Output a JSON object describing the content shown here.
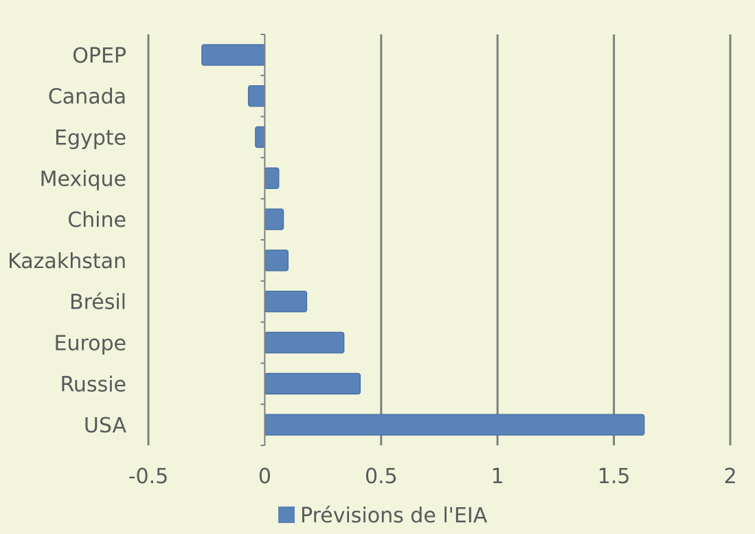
{
  "chart_data": {
    "type": "bar",
    "orientation": "horizontal",
    "categories": [
      "OPEP",
      "Canada",
      "Egypte",
      "Mexique",
      "Chine",
      "Kazakhstan",
      "Brésil",
      "Europe",
      "Russie",
      "USA"
    ],
    "series": [
      {
        "name": "Prévisions de l'EIA",
        "values": [
          -0.27,
          -0.07,
          -0.04,
          0.06,
          0.08,
          0.1,
          0.18,
          0.34,
          0.41,
          1.63
        ]
      }
    ],
    "xlim": [
      -0.5,
      2
    ],
    "xticks": [
      "-0.5",
      "0",
      "0.5",
      "1",
      "1.5",
      "2"
    ],
    "grid": true,
    "legend": "bottom",
    "colors": {
      "bar": "#5a84b8",
      "bar_edge": "#4a72a4",
      "grid": "#7f7f7f",
      "background": "#f2f5dc"
    }
  }
}
